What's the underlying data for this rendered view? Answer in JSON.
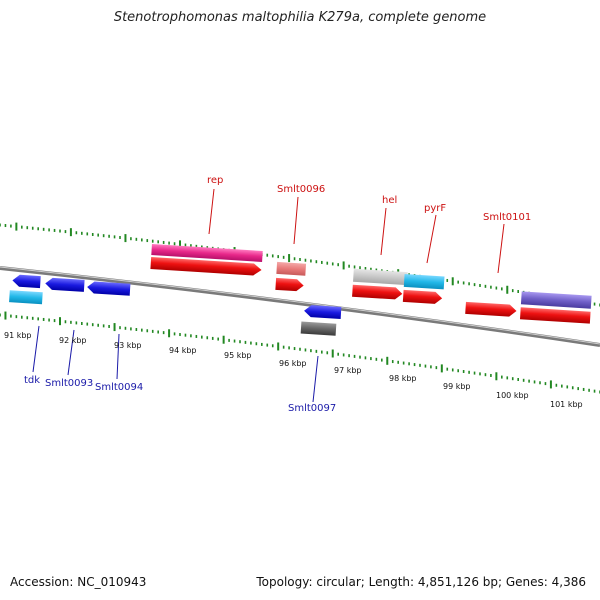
{
  "title": "Stenotrophomonas maltophilia K279a, complete genome",
  "footer": {
    "accession": "Accession: NC_010943",
    "summary": "Topology: circular; Length: 4,851,126 bp; Genes: 4,386"
  },
  "kbp_labels": [
    "91 kbp",
    "92 kbp",
    "93 kbp",
    "94 kbp",
    "95 kbp",
    "96 kbp",
    "97 kbp",
    "98 kbp",
    "99 kbp",
    "100 kbp",
    "101 kbp"
  ],
  "gene_labels": {
    "rep": "rep",
    "smlt0096": "Smlt0096",
    "hel": "hel",
    "pyrF": "pyrF",
    "smlt0101": "Smlt0101",
    "tdk": "tdk",
    "smlt0093": "Smlt0093",
    "smlt0094": "Smlt0094",
    "smlt0097": "Smlt0097"
  },
  "colors": {
    "cds_red": "#ee1111",
    "gene_magenta": "#e8288a",
    "gene_pink": "#e87a7a",
    "gene_grey": "#c8c8c8",
    "gene_cyan": "#22b8e8",
    "gene_blue": "#1a1ae0",
    "gene_violet": "#7060c8",
    "gene_darkgrey": "#666666",
    "tick_green": "#228822",
    "backbone": "#7a7a7a"
  }
}
